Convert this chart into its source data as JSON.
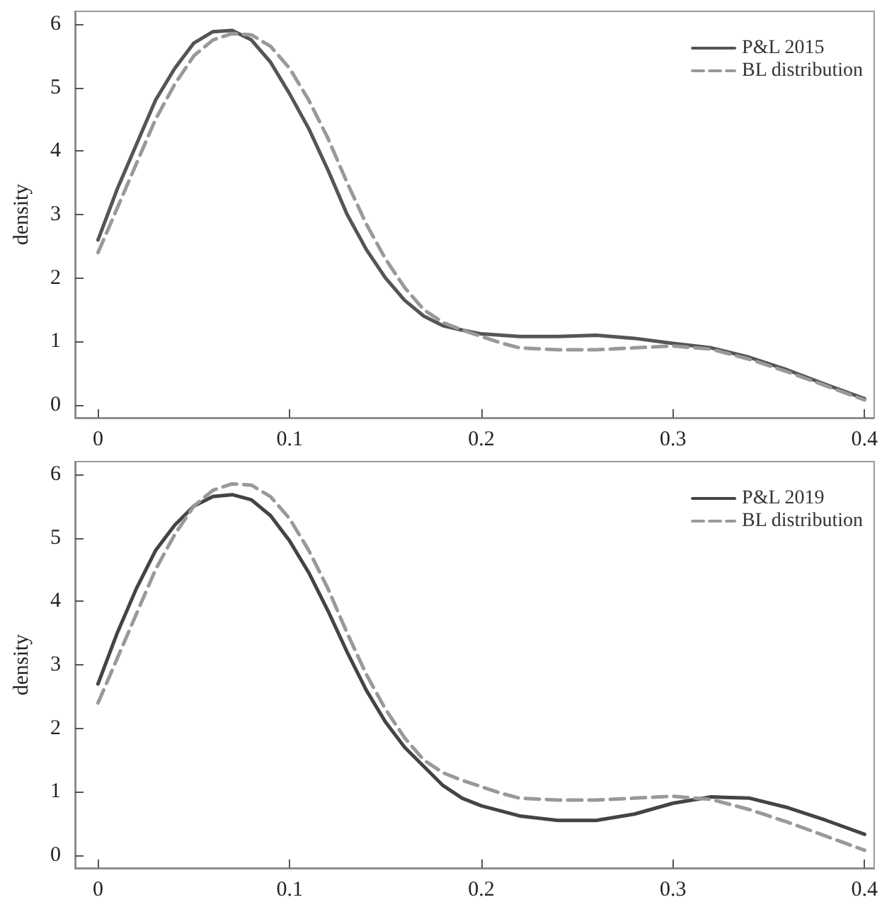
{
  "chart_data": [
    {
      "type": "line",
      "ylabel": "density",
      "xlim": [
        -0.012,
        0.405
      ],
      "ylim": [
        -0.2,
        6.2
      ],
      "xticks": [
        0,
        0.1,
        0.2,
        0.3,
        0.4
      ],
      "yticks": [
        0,
        1,
        2,
        3,
        4,
        5,
        6
      ],
      "legend": "top right",
      "grid": false,
      "marker": "none",
      "series": [
        {
          "name": "P&L 2015",
          "color": "#555555",
          "line_style": "solid",
          "x": [
            0,
            0.01,
            0.02,
            0.03,
            0.04,
            0.05,
            0.06,
            0.07,
            0.08,
            0.09,
            0.1,
            0.11,
            0.12,
            0.13,
            0.14,
            0.15,
            0.16,
            0.17,
            0.18,
            0.19,
            0.2,
            0.22,
            0.24,
            0.26,
            0.28,
            0.3,
            0.32,
            0.34,
            0.36,
            0.38,
            0.4
          ],
          "values": [
            2.6,
            3.4,
            4.1,
            4.8,
            5.3,
            5.7,
            5.88,
            5.9,
            5.75,
            5.4,
            4.9,
            4.35,
            3.7,
            3.0,
            2.45,
            2.0,
            1.65,
            1.4,
            1.25,
            1.18,
            1.12,
            1.08,
            1.08,
            1.1,
            1.05,
            0.97,
            0.9,
            0.75,
            0.55,
            0.32,
            0.1
          ]
        },
        {
          "name": "BL distribution",
          "color": "#999999",
          "line_style": "dashed",
          "x": [
            0,
            0.01,
            0.02,
            0.03,
            0.04,
            0.05,
            0.06,
            0.07,
            0.08,
            0.09,
            0.1,
            0.11,
            0.12,
            0.13,
            0.14,
            0.15,
            0.16,
            0.17,
            0.18,
            0.19,
            0.2,
            0.21,
            0.22,
            0.24,
            0.26,
            0.28,
            0.3,
            0.32,
            0.34,
            0.36,
            0.38,
            0.4
          ],
          "values": [
            2.4,
            3.1,
            3.8,
            4.5,
            5.05,
            5.5,
            5.75,
            5.85,
            5.83,
            5.65,
            5.3,
            4.8,
            4.2,
            3.5,
            2.85,
            2.3,
            1.85,
            1.5,
            1.3,
            1.18,
            1.08,
            0.98,
            0.9,
            0.87,
            0.87,
            0.9,
            0.93,
            0.88,
            0.72,
            0.52,
            0.3,
            0.08
          ]
        }
      ]
    },
    {
      "type": "line",
      "ylabel": "density",
      "xlim": [
        -0.012,
        0.405
      ],
      "ylim": [
        -0.2,
        6.2
      ],
      "xticks": [
        0,
        0.1,
        0.2,
        0.3,
        0.4
      ],
      "yticks": [
        0,
        1,
        2,
        3,
        4,
        5,
        6
      ],
      "legend": "top right",
      "grid": false,
      "marker": "none",
      "series": [
        {
          "name": "P&L 2019",
          "color": "#444444",
          "line_style": "solid",
          "x": [
            0,
            0.01,
            0.02,
            0.03,
            0.04,
            0.05,
            0.06,
            0.07,
            0.08,
            0.09,
            0.1,
            0.11,
            0.12,
            0.13,
            0.14,
            0.15,
            0.16,
            0.17,
            0.18,
            0.19,
            0.2,
            0.22,
            0.24,
            0.26,
            0.28,
            0.3,
            0.32,
            0.34,
            0.36,
            0.38,
            0.4
          ],
          "values": [
            2.7,
            3.5,
            4.2,
            4.8,
            5.2,
            5.5,
            5.65,
            5.68,
            5.6,
            5.35,
            4.95,
            4.45,
            3.85,
            3.2,
            2.6,
            2.1,
            1.7,
            1.4,
            1.1,
            0.9,
            0.78,
            0.62,
            0.55,
            0.55,
            0.65,
            0.82,
            0.92,
            0.9,
            0.75,
            0.55,
            0.33
          ]
        },
        {
          "name": "BL distribution",
          "color": "#999999",
          "line_style": "dashed",
          "x": [
            0,
            0.01,
            0.02,
            0.03,
            0.04,
            0.05,
            0.06,
            0.07,
            0.08,
            0.09,
            0.1,
            0.11,
            0.12,
            0.13,
            0.14,
            0.15,
            0.16,
            0.17,
            0.18,
            0.19,
            0.2,
            0.21,
            0.22,
            0.24,
            0.26,
            0.28,
            0.3,
            0.32,
            0.34,
            0.36,
            0.38,
            0.4
          ],
          "values": [
            2.4,
            3.1,
            3.8,
            4.5,
            5.05,
            5.5,
            5.75,
            5.85,
            5.83,
            5.65,
            5.3,
            4.8,
            4.2,
            3.5,
            2.85,
            2.3,
            1.85,
            1.5,
            1.3,
            1.18,
            1.08,
            0.98,
            0.9,
            0.87,
            0.87,
            0.9,
            0.93,
            0.88,
            0.72,
            0.52,
            0.3,
            0.08
          ]
        }
      ]
    }
  ]
}
